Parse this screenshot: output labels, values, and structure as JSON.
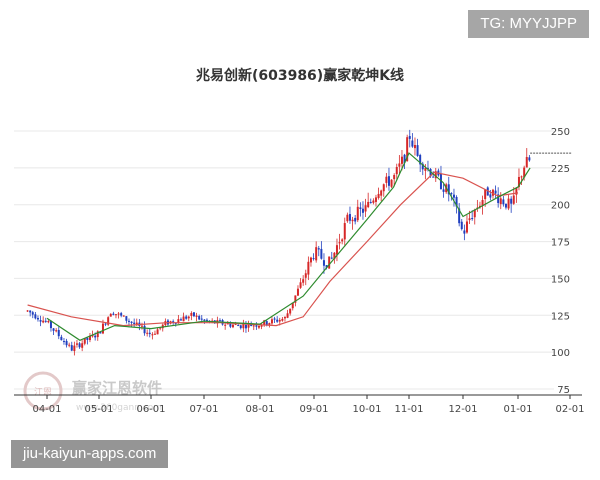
{
  "chart_data": {
    "type": "candlestick",
    "title": "兆易创新(603986)赢家乾坤K线",
    "y_ticks": [
      250,
      225,
      200,
      175,
      150,
      125,
      100,
      75
    ],
    "ylim": [
      75,
      260
    ],
    "x_tick_labels": [
      "04-01",
      "05-01",
      "06-01",
      "07-01",
      "08-01",
      "09-01",
      "10-01",
      "11-01",
      "12-01",
      "01-01",
      "02-01"
    ],
    "grid": true,
    "up_color": "#d62728",
    "down_color": "#1f3fbf",
    "ma_short_color": "#2e8b2e",
    "ma_long_color": "#d9534f",
    "last_price_line": 235,
    "price_path": [
      {
        "period": "03-20",
        "value": 128
      },
      {
        "period": "04-01",
        "value": 120
      },
      {
        "period": "04-15",
        "value": 102
      },
      {
        "period": "04-22",
        "value": 107
      },
      {
        "period": "05-01",
        "value": 113
      },
      {
        "period": "05-08",
        "value": 128
      },
      {
        "period": "05-20",
        "value": 120
      },
      {
        "period": "06-01",
        "value": 112
      },
      {
        "period": "06-10",
        "value": 120
      },
      {
        "period": "06-25",
        "value": 125
      },
      {
        "period": "07-01",
        "value": 121
      },
      {
        "period": "07-20",
        "value": 118
      },
      {
        "period": "08-01",
        "value": 119
      },
      {
        "period": "08-15",
        "value": 123
      },
      {
        "period": "08-25",
        "value": 150
      },
      {
        "period": "09-01",
        "value": 168
      },
      {
        "period": "09-10",
        "value": 160
      },
      {
        "period": "09-20",
        "value": 190
      },
      {
        "period": "10-01",
        "value": 198
      },
      {
        "period": "10-10",
        "value": 212
      },
      {
        "period": "10-20",
        "value": 218
      },
      {
        "period": "10-28",
        "value": 233
      },
      {
        "period": "11-01",
        "value": 248
      },
      {
        "period": "11-06",
        "value": 232
      },
      {
        "period": "11-15",
        "value": 220
      },
      {
        "period": "11-25",
        "value": 205
      },
      {
        "period": "12-01",
        "value": 180
      },
      {
        "period": "12-05",
        "value": 192
      },
      {
        "period": "12-15",
        "value": 210
      },
      {
        "period": "12-28",
        "value": 198
      },
      {
        "period": "01-01",
        "value": 215
      },
      {
        "period": "01-05",
        "value": 228
      },
      {
        "period": "01-08",
        "value": 230
      }
    ],
    "ma_short": [
      {
        "period": "04-01",
        "value": 123
      },
      {
        "period": "04-20",
        "value": 108
      },
      {
        "period": "05-10",
        "value": 118
      },
      {
        "period": "06-01",
        "value": 116
      },
      {
        "period": "07-01",
        "value": 121
      },
      {
        "period": "08-01",
        "value": 119
      },
      {
        "period": "08-25",
        "value": 138
      },
      {
        "period": "09-10",
        "value": 160
      },
      {
        "period": "10-01",
        "value": 190
      },
      {
        "period": "10-20",
        "value": 212
      },
      {
        "period": "11-01",
        "value": 235
      },
      {
        "period": "11-20",
        "value": 215
      },
      {
        "period": "12-01",
        "value": 192
      },
      {
        "period": "12-20",
        "value": 205
      },
      {
        "period": "01-01",
        "value": 212
      },
      {
        "period": "01-08",
        "value": 225
      }
    ],
    "ma_long": [
      {
        "period": "03-20",
        "value": 132
      },
      {
        "period": "04-15",
        "value": 124
      },
      {
        "period": "05-15",
        "value": 118
      },
      {
        "period": "06-10",
        "value": 120
      },
      {
        "period": "07-10",
        "value": 120
      },
      {
        "period": "08-10",
        "value": 118
      },
      {
        "period": "08-25",
        "value": 124
      },
      {
        "period": "09-10",
        "value": 148
      },
      {
        "period": "10-01",
        "value": 175
      },
      {
        "period": "10-25",
        "value": 200
      },
      {
        "period": "11-15",
        "value": 222
      },
      {
        "period": "12-01",
        "value": 218
      },
      {
        "period": "12-20",
        "value": 206
      },
      {
        "period": "01-01",
        "value": 208
      }
    ]
  },
  "watermark": {
    "name": "赢家江恩软件",
    "url": "www.360gann.com",
    "logo_char": "江恩"
  },
  "badges": {
    "top_right": "TG: MYYJJPP",
    "bottom_left": "jiu-kaiyun-apps.com"
  }
}
